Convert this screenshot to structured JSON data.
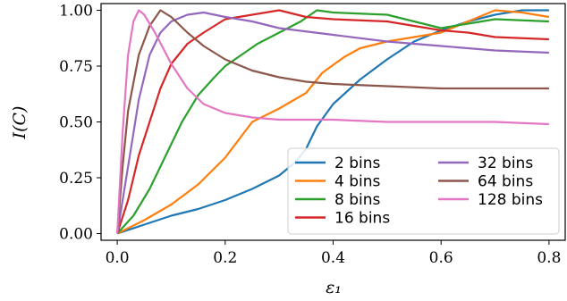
{
  "chart_data": {
    "type": "line",
    "xlabel": "ε₁",
    "ylabel": "I(C)",
    "xlim": [
      -0.03,
      0.83
    ],
    "ylim": [
      -0.03,
      1.03
    ],
    "x_ticks": [
      "0.0",
      "0.2",
      "0.4",
      "0.6",
      "0.8"
    ],
    "y_ticks": [
      "0.00",
      "0.25",
      "0.50",
      "0.75",
      "1.00"
    ],
    "legend_position": "lower-right",
    "legend_columns": 2,
    "series": [
      {
        "name": "2 bins",
        "color": "#1f77b4",
        "points": [
          [
            0,
            0
          ],
          [
            0.05,
            0.04
          ],
          [
            0.1,
            0.08
          ],
          [
            0.15,
            0.11
          ],
          [
            0.2,
            0.15
          ],
          [
            0.25,
            0.2
          ],
          [
            0.3,
            0.26
          ],
          [
            0.33,
            0.32
          ],
          [
            0.35,
            0.38
          ],
          [
            0.37,
            0.48
          ],
          [
            0.4,
            0.58
          ],
          [
            0.45,
            0.69
          ],
          [
            0.5,
            0.78
          ],
          [
            0.55,
            0.86
          ],
          [
            0.6,
            0.91
          ],
          [
            0.65,
            0.95
          ],
          [
            0.7,
            0.98
          ],
          [
            0.75,
            1.0
          ],
          [
            0.8,
            1.0
          ]
        ]
      },
      {
        "name": "4 bins",
        "color": "#ff7f0e",
        "points": [
          [
            0,
            0
          ],
          [
            0.05,
            0.06
          ],
          [
            0.1,
            0.13
          ],
          [
            0.15,
            0.22
          ],
          [
            0.2,
            0.34
          ],
          [
            0.25,
            0.5
          ],
          [
            0.3,
            0.56
          ],
          [
            0.35,
            0.63
          ],
          [
            0.38,
            0.72
          ],
          [
            0.42,
            0.79
          ],
          [
            0.45,
            0.83
          ],
          [
            0.5,
            0.86
          ],
          [
            0.55,
            0.88
          ],
          [
            0.6,
            0.9
          ],
          [
            0.65,
            0.95
          ],
          [
            0.7,
            1.0
          ],
          [
            0.75,
            0.99
          ],
          [
            0.8,
            0.97
          ]
        ]
      },
      {
        "name": "8 bins",
        "color": "#2ca02c",
        "points": [
          [
            0,
            0
          ],
          [
            0.03,
            0.08
          ],
          [
            0.06,
            0.2
          ],
          [
            0.09,
            0.35
          ],
          [
            0.12,
            0.5
          ],
          [
            0.15,
            0.62
          ],
          [
            0.18,
            0.7
          ],
          [
            0.2,
            0.75
          ],
          [
            0.23,
            0.8
          ],
          [
            0.26,
            0.85
          ],
          [
            0.3,
            0.9
          ],
          [
            0.34,
            0.95
          ],
          [
            0.37,
            1.0
          ],
          [
            0.4,
            0.99
          ],
          [
            0.5,
            0.98
          ],
          [
            0.55,
            0.95
          ],
          [
            0.6,
            0.92
          ],
          [
            0.65,
            0.94
          ],
          [
            0.7,
            0.96
          ],
          [
            0.8,
            0.95
          ]
        ]
      },
      {
        "name": "16 bins",
        "color": "#d62728",
        "points": [
          [
            0,
            0
          ],
          [
            0.02,
            0.15
          ],
          [
            0.04,
            0.35
          ],
          [
            0.06,
            0.5
          ],
          [
            0.08,
            0.65
          ],
          [
            0.1,
            0.76
          ],
          [
            0.13,
            0.85
          ],
          [
            0.16,
            0.9
          ],
          [
            0.2,
            0.96
          ],
          [
            0.25,
            0.98
          ],
          [
            0.3,
            1.0
          ],
          [
            0.35,
            0.97
          ],
          [
            0.4,
            0.96
          ],
          [
            0.5,
            0.95
          ],
          [
            0.6,
            0.91
          ],
          [
            0.65,
            0.9
          ],
          [
            0.7,
            0.88
          ],
          [
            0.8,
            0.87
          ]
        ]
      },
      {
        "name": "32 bins",
        "color": "#9467bd",
        "points": [
          [
            0,
            0
          ],
          [
            0.02,
            0.3
          ],
          [
            0.04,
            0.6
          ],
          [
            0.06,
            0.8
          ],
          [
            0.08,
            0.9
          ],
          [
            0.1,
            0.95
          ],
          [
            0.13,
            0.98
          ],
          [
            0.16,
            0.99
          ],
          [
            0.2,
            0.97
          ],
          [
            0.25,
            0.95
          ],
          [
            0.3,
            0.92
          ],
          [
            0.4,
            0.89
          ],
          [
            0.5,
            0.86
          ],
          [
            0.6,
            0.84
          ],
          [
            0.7,
            0.82
          ],
          [
            0.8,
            0.81
          ]
        ]
      },
      {
        "name": "64 bins",
        "color": "#8c564b",
        "points": [
          [
            0,
            0
          ],
          [
            0.01,
            0.3
          ],
          [
            0.02,
            0.55
          ],
          [
            0.04,
            0.8
          ],
          [
            0.06,
            0.93
          ],
          [
            0.08,
            1.0
          ],
          [
            0.1,
            0.97
          ],
          [
            0.13,
            0.9
          ],
          [
            0.16,
            0.84
          ],
          [
            0.2,
            0.78
          ],
          [
            0.25,
            0.73
          ],
          [
            0.3,
            0.7
          ],
          [
            0.35,
            0.68
          ],
          [
            0.4,
            0.67
          ],
          [
            0.5,
            0.66
          ],
          [
            0.6,
            0.65
          ],
          [
            0.7,
            0.65
          ],
          [
            0.8,
            0.65
          ]
        ]
      },
      {
        "name": "128 bins",
        "color": "#e377c2",
        "points": [
          [
            0,
            0
          ],
          [
            0.01,
            0.45
          ],
          [
            0.02,
            0.8
          ],
          [
            0.03,
            0.95
          ],
          [
            0.04,
            1.0
          ],
          [
            0.05,
            0.98
          ],
          [
            0.07,
            0.9
          ],
          [
            0.1,
            0.76
          ],
          [
            0.13,
            0.65
          ],
          [
            0.16,
            0.58
          ],
          [
            0.2,
            0.54
          ],
          [
            0.25,
            0.52
          ],
          [
            0.3,
            0.51
          ],
          [
            0.4,
            0.51
          ],
          [
            0.5,
            0.5
          ],
          [
            0.6,
            0.5
          ],
          [
            0.7,
            0.5
          ],
          [
            0.8,
            0.49
          ]
        ]
      }
    ]
  }
}
